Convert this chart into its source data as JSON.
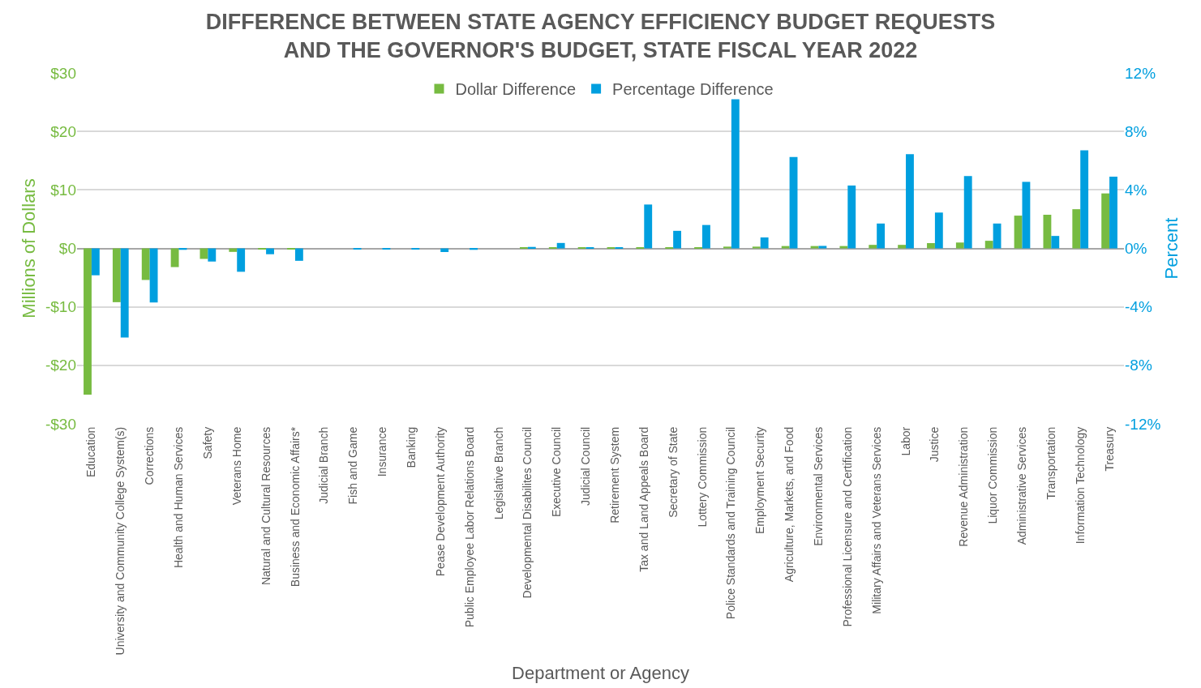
{
  "chart_data": {
    "type": "bar",
    "title": "DIFFERENCE BETWEEN STATE AGENCY EFFICIENCY BUDGET REQUESTS AND THE GOVERNOR'S BUDGET, STATE FISCAL YEAR 2022",
    "xlabel": "Department or Agency",
    "ylabel": "Millions of Dollars",
    "y2label": "Percent",
    "categories": [
      "Education",
      "University and Community College System(s)",
      "Corrections",
      "Health and Human Services",
      "Safety",
      "Veterans Home",
      "Natural and Cultural Resources",
      "Business and Economic Affairs*",
      "Judicial Branch",
      "Fish and Game",
      "Insurance",
      "Banking",
      "Pease Development Authority",
      "Public Employee Labor Relations Board",
      "Legislative Branch",
      "Developmental Disabilites Council",
      "Executive Council",
      "Judicial Council",
      "Retirement System",
      "Tax and Land Appeals Board",
      "Secretary of State",
      "Lottery Commission",
      "Police Standards and Training Council",
      "Employment Security",
      "Agriculture, Markets, and Food",
      "Environmental Services",
      "Professional Licensure and Certification",
      "Military Affairs and Veterans Services",
      "Labor",
      "Justice",
      "Revenue Administration",
      "Liquor Commission",
      "Administrative Services",
      "Transportation",
      "Information Technology",
      "Treasury"
    ],
    "series": [
      {
        "name": "Dollar Difference",
        "color": "#77bb41",
        "values": [
          -25,
          -9.2,
          -5.4,
          -3.2,
          -1.8,
          -0.6,
          -0.2,
          -0.2,
          0,
          0,
          0,
          0,
          0,
          0,
          0,
          0.1,
          0.1,
          0.1,
          0.1,
          0.1,
          0.1,
          0.1,
          0.3,
          0.3,
          0.4,
          0.4,
          0.4,
          0.6,
          0.6,
          0.9,
          1.0,
          1.3,
          5.6,
          5.75,
          6.7,
          9.4
        ]
      },
      {
        "name": "Percentage Difference",
        "color": "#009fdf",
        "axis": "y2",
        "values": [
          -1.84,
          -6.1,
          -3.7,
          -0.1,
          -0.9,
          -1.6,
          -0.4,
          -0.85,
          0,
          -0.05,
          -0.05,
          -0.05,
          -0.25,
          -0.1,
          0,
          0.1,
          0.37,
          0.05,
          0.05,
          3.0,
          1.2,
          1.6,
          10.2,
          0.75,
          6.25,
          0.17,
          4.3,
          1.7,
          6.45,
          2.45,
          4.95,
          1.7,
          4.55,
          0.85,
          6.7,
          4.9
        ]
      }
    ],
    "ylim": [
      -30,
      30
    ],
    "yticks": [
      {
        "value": -30,
        "label": "-$30"
      },
      {
        "value": -20,
        "label": "-$20"
      },
      {
        "value": -10,
        "label": "-$10"
      },
      {
        "value": 0,
        "label": "$0"
      },
      {
        "value": 10,
        "label": "$10"
      },
      {
        "value": 20,
        "label": "$20"
      },
      {
        "value": 30,
        "label": "$30"
      }
    ],
    "y2lim": [
      -12,
      12
    ],
    "y2ticks": [
      {
        "value": -12,
        "label": "-12%"
      },
      {
        "value": -8,
        "label": "-8%"
      },
      {
        "value": -4,
        "label": "-4%"
      },
      {
        "value": 0,
        "label": "0%"
      },
      {
        "value": 4,
        "label": "4%"
      },
      {
        "value": 8,
        "label": "8%"
      },
      {
        "value": 12,
        "label": "12%"
      }
    ],
    "grid": "y",
    "legend": "top"
  }
}
